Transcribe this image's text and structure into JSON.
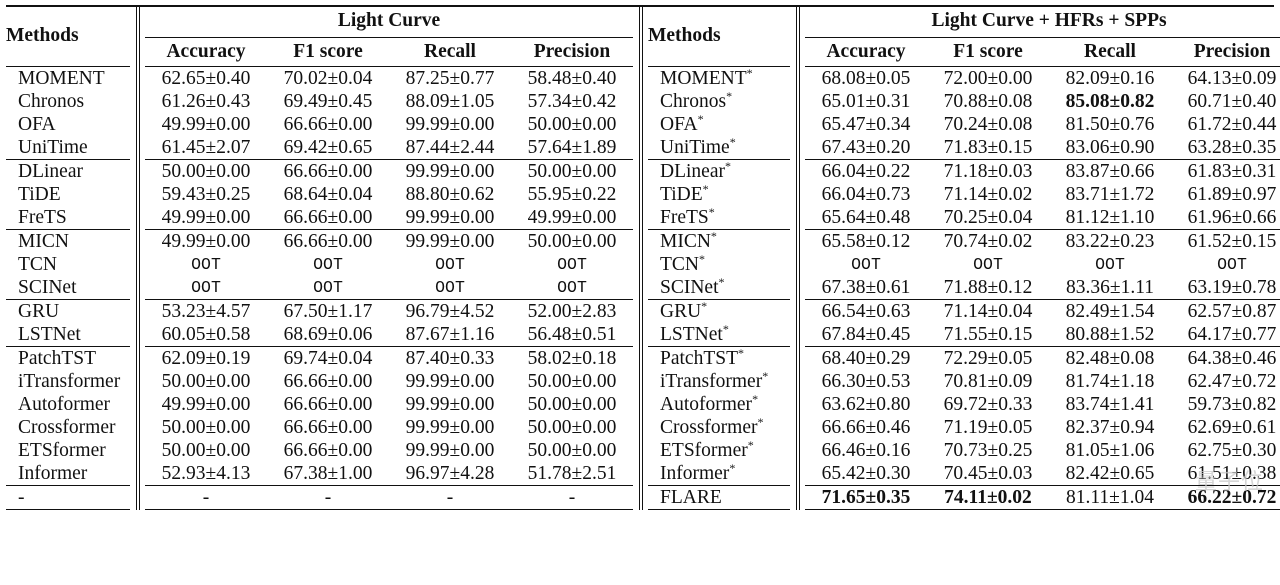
{
  "header": {
    "methods_left": "Methods",
    "methods_right": "Methods",
    "group_left": "Light Curve",
    "group_right": "Light Curve + HFRs + SPPs",
    "metrics": [
      "Accuracy",
      "F1 score",
      "Recall",
      "Precision"
    ]
  },
  "table": {
    "groups": [
      [
        {
          "left": {
            "name": "MOMENT",
            "values": [
              "62.65±0.40",
              "70.02±0.04",
              "87.25±0.77",
              "58.48±0.40"
            ]
          },
          "right": {
            "name": "MOMENT",
            "values": [
              "68.08±0.05",
              "72.00±0.00",
              "82.09±0.16",
              "64.13±0.09"
            ]
          }
        },
        {
          "left": {
            "name": "Chronos",
            "values": [
              "61.26±0.43",
              "69.49±0.45",
              "88.09±1.05",
              "57.34±0.42"
            ]
          },
          "right": {
            "name": "Chronos",
            "values": [
              "65.01±0.31",
              "70.88±0.08",
              "85.08±0.82",
              "60.71±0.40"
            ]
          }
        },
        {
          "left": {
            "name": "OFA",
            "values": [
              "49.99±0.00",
              "66.66±0.00",
              "99.99±0.00",
              "50.00±0.00"
            ]
          },
          "right": {
            "name": "OFA",
            "values": [
              "65.47±0.34",
              "70.24±0.08",
              "81.50±0.76",
              "61.72±0.44"
            ]
          }
        },
        {
          "left": {
            "name": "UniTime",
            "values": [
              "61.45±2.07",
              "69.42±0.65",
              "87.44±2.44",
              "57.64±1.89"
            ]
          },
          "right": {
            "name": "UniTime",
            "values": [
              "67.43±0.20",
              "71.83±0.15",
              "83.06±0.90",
              "63.28±0.35"
            ]
          }
        }
      ],
      [
        {
          "left": {
            "name": "DLinear",
            "values": [
              "50.00±0.00",
              "66.66±0.00",
              "99.99±0.00",
              "50.00±0.00"
            ]
          },
          "right": {
            "name": "DLinear",
            "values": [
              "66.04±0.22",
              "71.18±0.03",
              "83.87±0.66",
              "61.83±0.31"
            ]
          }
        },
        {
          "left": {
            "name": "TiDE",
            "values": [
              "59.43±0.25",
              "68.64±0.04",
              "88.80±0.62",
              "55.95±0.22"
            ]
          },
          "right": {
            "name": "TiDE",
            "values": [
              "66.04±0.73",
              "71.14±0.02",
              "83.71±1.72",
              "61.89±0.97"
            ]
          }
        },
        {
          "left": {
            "name": "FreTS",
            "values": [
              "49.99±0.00",
              "66.66±0.00",
              "99.99±0.00",
              "49.99±0.00"
            ]
          },
          "right": {
            "name": "FreTS",
            "values": [
              "65.64±0.48",
              "70.25±0.04",
              "81.12±1.10",
              "61.96±0.66"
            ]
          }
        }
      ],
      [
        {
          "left": {
            "name": "MICN",
            "values": [
              "49.99±0.00",
              "66.66±0.00",
              "99.99±0.00",
              "50.00±0.00"
            ]
          },
          "right": {
            "name": "MICN",
            "values": [
              "65.58±0.12",
              "70.74±0.02",
              "83.22±0.23",
              "61.52±0.15"
            ]
          }
        },
        {
          "left": {
            "name": "TCN",
            "values": [
              "OOT",
              "OOT",
              "OOT",
              "OOT"
            ]
          },
          "right": {
            "name": "TCN",
            "values": [
              "OOT",
              "OOT",
              "OOT",
              "OOT"
            ]
          }
        },
        {
          "left": {
            "name": "SCINet",
            "values": [
              "OOT",
              "OOT",
              "OOT",
              "OOT"
            ]
          },
          "right": {
            "name": "SCINet",
            "values": [
              "67.38±0.61",
              "71.88±0.12",
              "83.36±1.11",
              "63.19±0.78"
            ]
          }
        }
      ],
      [
        {
          "left": {
            "name": "GRU",
            "values": [
              "53.23±4.57",
              "67.50±1.17",
              "96.79±4.52",
              "52.00±2.83"
            ]
          },
          "right": {
            "name": "GRU",
            "values": [
              "66.54±0.63",
              "71.14±0.04",
              "82.49±1.54",
              "62.57±0.87"
            ]
          }
        },
        {
          "left": {
            "name": "LSTNet",
            "values": [
              "60.05±0.58",
              "68.69±0.06",
              "87.67±1.16",
              "56.48±0.51"
            ]
          },
          "right": {
            "name": "LSTNet",
            "values": [
              "67.84±0.45",
              "71.55±0.15",
              "80.88±1.52",
              "64.17±0.77"
            ]
          }
        }
      ],
      [
        {
          "left": {
            "name": "PatchTST",
            "values": [
              "62.09±0.19",
              "69.74±0.04",
              "87.40±0.33",
              "58.02±0.18"
            ]
          },
          "right": {
            "name": "PatchTST",
            "values": [
              "68.40±0.29",
              "72.29±0.05",
              "82.48±0.08",
              "64.38±0.46"
            ]
          }
        },
        {
          "left": {
            "name": "iTransformer",
            "values": [
              "50.00±0.00",
              "66.66±0.00",
              "99.99±0.00",
              "50.00±0.00"
            ]
          },
          "right": {
            "name": "iTransformer",
            "values": [
              "66.30±0.53",
              "70.81±0.09",
              "81.74±1.18",
              "62.47±0.72"
            ]
          }
        },
        {
          "left": {
            "name": "Autoformer",
            "values": [
              "49.99±0.00",
              "66.66±0.00",
              "99.99±0.00",
              "50.00±0.00"
            ]
          },
          "right": {
            "name": "Autoformer",
            "values": [
              "63.62±0.80",
              "69.72±0.33",
              "83.74±1.41",
              "59.73±0.82"
            ]
          }
        },
        {
          "left": {
            "name": "Crossformer",
            "values": [
              "50.00±0.00",
              "66.66±0.00",
              "99.99±0.00",
              "50.00±0.00"
            ]
          },
          "right": {
            "name": "Crossformer",
            "values": [
              "66.66±0.46",
              "71.19±0.05",
              "82.37±0.94",
              "62.69±0.61"
            ]
          }
        },
        {
          "left": {
            "name": "ETSformer",
            "values": [
              "50.00±0.00",
              "66.66±0.00",
              "99.99±0.00",
              "50.00±0.00"
            ]
          },
          "right": {
            "name": "ETSformer",
            "values": [
              "66.46±0.16",
              "70.73±0.25",
              "81.05±1.06",
              "62.75±0.30"
            ]
          }
        },
        {
          "left": {
            "name": "Informer",
            "values": [
              "52.93±4.13",
              "67.38±1.00",
              "96.97±4.28",
              "51.78±2.51"
            ]
          },
          "right": {
            "name": "Informer",
            "values": [
              "65.42±0.30",
              "70.45±0.03",
              "82.42±0.65",
              "61.51±0.38"
            ]
          }
        }
      ]
    ],
    "final_row": {
      "left": {
        "name": "-",
        "values": [
          "-",
          "-",
          "-",
          "-"
        ]
      },
      "right": {
        "name": "FLARE",
        "values": [
          "71.65±0.35",
          "74.11±0.02",
          "81.11±1.04",
          "66.22±0.72"
        ]
      }
    },
    "star": "*",
    "bold_cells": [
      "r-1-2",
      "final-0",
      "final-1",
      "final-3"
    ],
    "oot_value": "OOT"
  },
  "watermark": "量子位"
}
